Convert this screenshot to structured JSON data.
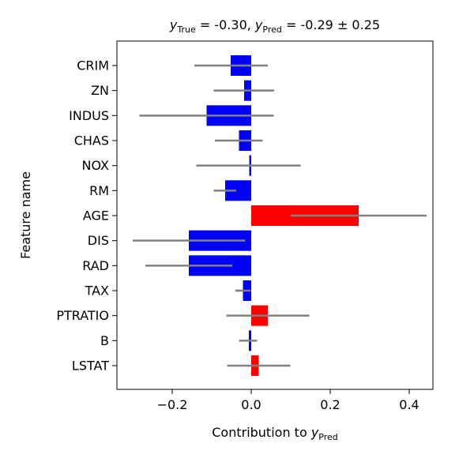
{
  "chart_data": {
    "type": "bar",
    "orientation": "horizontal",
    "title": {
      "y_true_label": "y",
      "y_true_sub": "True",
      "y_true_value": " = -0.30, ",
      "y_pred_label": "y",
      "y_pred_sub": "Pred",
      "y_pred_value": " = -0.29 ± 0.25"
    },
    "xlabel": {
      "text": "Contribution to ",
      "var": "y",
      "sub": "Pred"
    },
    "ylabel": "Feature name",
    "xlim": [
      -0.34,
      0.46
    ],
    "xticks": [
      {
        "value": -0.2,
        "label": "−0.2"
      },
      {
        "value": 0.0,
        "label": "0.0"
      },
      {
        "value": 0.2,
        "label": "0.2"
      },
      {
        "value": 0.4,
        "label": "0.4"
      }
    ],
    "grid": false,
    "colors": {
      "positive": "#ff0000",
      "negative": "#0000ff",
      "error_bar": "#808080"
    },
    "categories": [
      "CRIM",
      "ZN",
      "INDUS",
      "CHAS",
      "NOX",
      "RM",
      "AGE",
      "DIS",
      "RAD",
      "TAX",
      "PTRATIO",
      "B",
      "LSTAT"
    ],
    "values": [
      -0.052,
      -0.018,
      -0.113,
      -0.031,
      -0.005,
      -0.066,
      0.272,
      -0.158,
      -0.158,
      -0.021,
      0.042,
      -0.006,
      0.019
    ],
    "error_low": [
      -0.144,
      -0.095,
      -0.283,
      -0.092,
      -0.139,
      -0.095,
      0.1,
      -0.3,
      -0.268,
      -0.04,
      -0.063,
      -0.031,
      -0.061
    ],
    "error_high": [
      0.042,
      0.058,
      0.057,
      0.029,
      0.125,
      -0.038,
      0.444,
      -0.015,
      -0.048,
      -0.002,
      0.147,
      0.015,
      0.099
    ]
  }
}
